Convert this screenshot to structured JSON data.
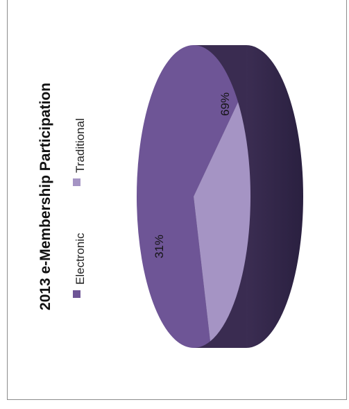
{
  "chart_data": {
    "type": "pie",
    "title": "2013 e-Membership Participation",
    "slices": [
      {
        "label": "Electronic",
        "value": 69,
        "display": "69%",
        "color": "#6e5596"
      },
      {
        "label": "Traditional",
        "value": 31,
        "display": "31%",
        "color": "#a594c4"
      }
    ],
    "legend_position": "top",
    "orientation": "rotated 90 degrees counter-clockwise",
    "style": "3D"
  }
}
